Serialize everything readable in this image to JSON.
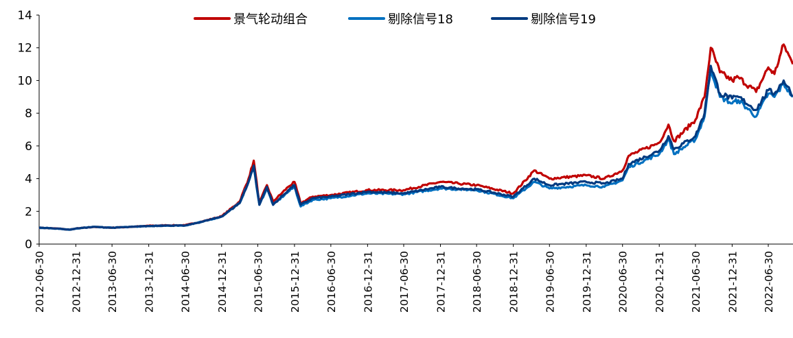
{
  "chart_data": {
    "type": "line",
    "title": "",
    "xlabel": "",
    "ylabel": "",
    "ylim": [
      0,
      14
    ],
    "yticks": [
      0,
      2,
      4,
      6,
      8,
      10,
      12,
      14
    ],
    "xlim": [
      "2012-06-30",
      "2022-10-31"
    ],
    "xticks": [
      "2012-06-30",
      "2012-12-31",
      "2013-06-30",
      "2013-12-31",
      "2014-06-30",
      "2014-12-31",
      "2015-06-30",
      "2015-12-31",
      "2016-06-30",
      "2016-12-31",
      "2017-06-30",
      "2017-12-31",
      "2018-06-30",
      "2018-12-31",
      "2019-06-30",
      "2019-12-31",
      "2020-06-30",
      "2020-12-31",
      "2021-06-30",
      "2021-12-31",
      "2022-06-30"
    ],
    "grid": false,
    "legend_position": "top-center",
    "dates": [
      "2012-06-30",
      "2012-09-30",
      "2012-11-30",
      "2012-12-31",
      "2013-03-31",
      "2013-06-30",
      "2013-09-30",
      "2013-12-31",
      "2014-03-31",
      "2014-06-30",
      "2014-09-30",
      "2014-12-31",
      "2015-03-31",
      "2015-05-15",
      "2015-06-10",
      "2015-07-08",
      "2015-08-15",
      "2015-09-15",
      "2015-11-30",
      "2015-12-31",
      "2016-01-31",
      "2016-03-31",
      "2016-06-30",
      "2016-12-31",
      "2017-06-30",
      "2017-12-31",
      "2018-03-31",
      "2018-06-30",
      "2018-12-31",
      "2019-04-15",
      "2019-06-30",
      "2019-12-31",
      "2020-03-31",
      "2020-06-30",
      "2020-07-31",
      "2020-12-31",
      "2021-02-15",
      "2021-03-15",
      "2021-06-30",
      "2021-08-15",
      "2021-09-15",
      "2021-10-31",
      "2021-12-31",
      "2022-01-31",
      "2022-04-30",
      "2022-06-30",
      "2022-07-31",
      "2022-09-15",
      "2022-10-31"
    ],
    "series": [
      {
        "name": "景气轮动组合",
        "color": "#C00000",
        "values": [
          1.0,
          0.95,
          0.88,
          0.95,
          1.05,
          1.0,
          1.05,
          1.12,
          1.15,
          1.15,
          1.4,
          1.7,
          2.6,
          4.0,
          5.1,
          2.5,
          3.6,
          2.6,
          3.5,
          3.8,
          2.5,
          2.9,
          3.0,
          3.3,
          3.3,
          3.8,
          3.7,
          3.6,
          3.1,
          4.5,
          4.0,
          4.2,
          4.0,
          4.5,
          5.4,
          6.2,
          7.3,
          6.3,
          7.6,
          9.0,
          12.0,
          10.5,
          10.0,
          10.2,
          9.3,
          10.8,
          10.4,
          12.2,
          11.0
        ]
      },
      {
        "name": "剔除信号18",
        "color": "#0070C0",
        "values": [
          1.0,
          0.95,
          0.88,
          0.95,
          1.05,
          1.0,
          1.05,
          1.1,
          1.13,
          1.13,
          1.38,
          1.68,
          2.5,
          3.8,
          4.7,
          2.4,
          3.4,
          2.4,
          3.2,
          3.5,
          2.3,
          2.7,
          2.8,
          3.1,
          3.05,
          3.4,
          3.35,
          3.3,
          2.8,
          3.8,
          3.4,
          3.6,
          3.5,
          3.9,
          4.7,
          5.5,
          6.4,
          5.5,
          6.4,
          7.8,
          10.7,
          9.0,
          8.6,
          8.8,
          7.8,
          9.2,
          9.0,
          9.8,
          9.0
        ]
      },
      {
        "name": "剔除信号19",
        "color": "#003A80",
        "values": [
          1.0,
          0.95,
          0.88,
          0.95,
          1.05,
          1.0,
          1.05,
          1.1,
          1.13,
          1.13,
          1.38,
          1.68,
          2.5,
          3.8,
          4.8,
          2.4,
          3.5,
          2.4,
          3.3,
          3.6,
          2.4,
          2.8,
          2.9,
          3.2,
          3.1,
          3.5,
          3.4,
          3.35,
          2.9,
          4.0,
          3.6,
          3.8,
          3.7,
          4.0,
          4.9,
          5.7,
          6.6,
          5.8,
          6.6,
          8.0,
          10.9,
          9.2,
          8.9,
          9.0,
          8.2,
          9.4,
          9.2,
          10.0,
          9.1
        ]
      }
    ]
  }
}
